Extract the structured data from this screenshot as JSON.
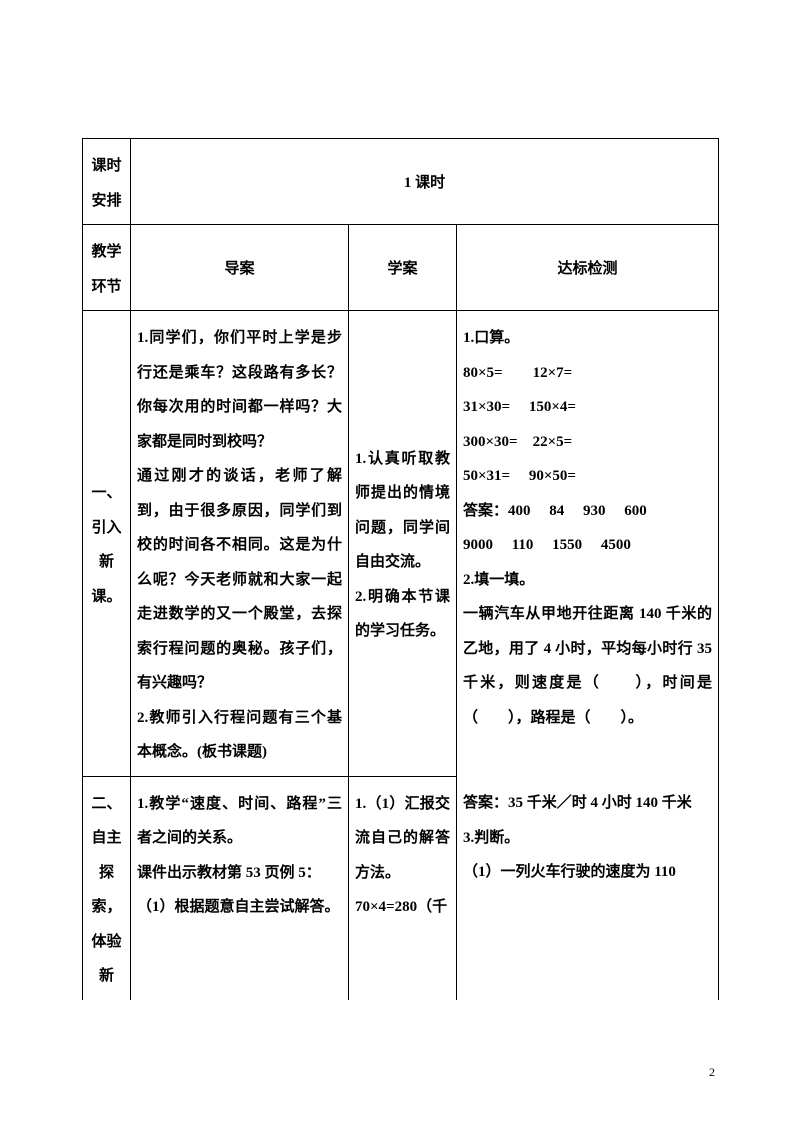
{
  "row1": {
    "label": "课时安排",
    "value": "1 课时"
  },
  "row2": {
    "label": "教学环节",
    "c2": "导案",
    "c3": "学案",
    "c4": "达标检测"
  },
  "row3": {
    "label": "一、引入新课。",
    "c2": "1.同学们，你们平时上学是步行还是乘车？这段路有多长？你每次用的时间都一样吗？大家都是同时到校吗？\n通过刚才的谈话，老师了解到，由于很多原因，同学们到校的时间各不相同。这是为什么呢？今天老师就和大家一起走进数学的又一个殿堂，去探索行程问题的奥秘。孩子们，有兴趣吗？\n2.教师引入行程问题有三个基本概念。(板书课题)",
    "c3": "1.认真听取教师提出的情境问题，同学间自由交流。\n2.明确本节课的学习任务。",
    "c4line1": "1.口算。",
    "c4line2": "80×5=　　12×7=",
    "c4line3": "31×30=　 150×4=",
    "c4line4": "300×30=　22×5=",
    "c4line5": "50×31=　 90×50=",
    "c4line6": "答案：400　 84　 930　 600",
    "c4line7": "9000　 110　 1550　 4500",
    "c4line8": "2.填一填。",
    "c4line9": "一辆汽车从甲地开往距离 140 千米的乙地，用了 4 小时，平均每小时行 35 千米，则速度是（　　），时间是（　　），路程是（　　）。"
  },
  "row4": {
    "label": "二、自主探索，体验新",
    "c2": "1.教学“速度、时间、路程”三者之间的关系。\n课件出示教材第 53 页例 5：\n（1）根据题意自主尝试解答。",
    "c3": "1.（1）汇报交流自己的解答方法。\n70×4=280（千",
    "c4a": "答案：35 千米／时 4 小时 140 千米",
    "c4b": "3.判断。",
    "c4c": "（1）一列火车行驶的速度为 110"
  },
  "pagenum": "2"
}
